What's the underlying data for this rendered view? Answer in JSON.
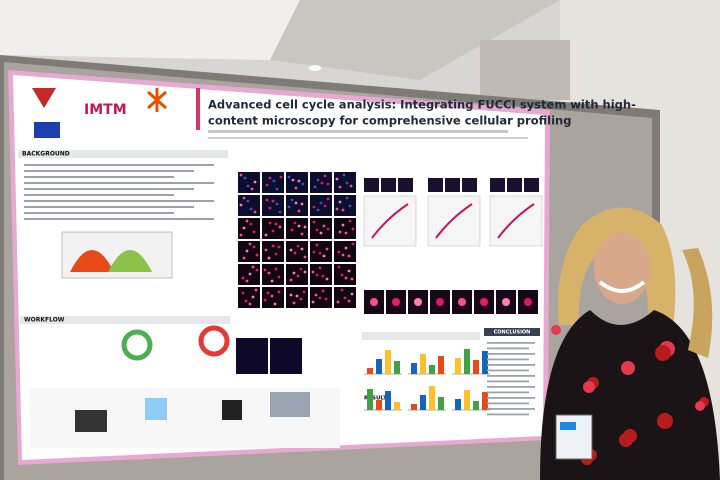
{
  "poster": {
    "logo": "IMTM",
    "title_lines": [
      "Advanced cell cycle analysis: Integrating FUCCI system with high-",
      "content microscopy for comprehensive cellular profiling"
    ],
    "sections": {
      "background": "BACKGROUND",
      "workflow": "WORKFLOW",
      "results": "RESULTS",
      "conclusion": "CONCLUSION"
    }
  }
}
